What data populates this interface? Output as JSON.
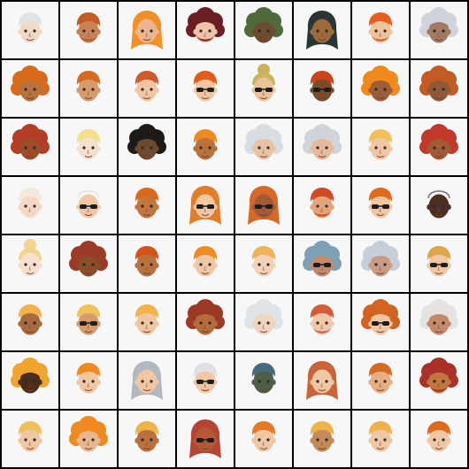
{
  "grid": {
    "rows": 8,
    "cols": 8,
    "cells": [
      {
        "skin": "#f1d9c6",
        "hair": "#dfe3e6",
        "style": "short",
        "glasses": false,
        "beard": false
      },
      {
        "skin": "#c88255",
        "hair": "#c45a24",
        "style": "short",
        "glasses": false,
        "beard": true
      },
      {
        "skin": "#e9b68f",
        "hair": "#f08a1e",
        "style": "long",
        "glasses": false,
        "beard": false
      },
      {
        "skin": "#f0c2a8",
        "hair": "#6b1f22",
        "style": "curly",
        "glasses": false,
        "beard": true
      },
      {
        "skin": "#6d4b2d",
        "hair": "#4f6b3b",
        "style": "curly",
        "glasses": false,
        "beard": false
      },
      {
        "skin": "#9b6b3a",
        "hair": "#1d2b2a",
        "style": "long",
        "glasses": false,
        "beard": false
      },
      {
        "skin": "#f0c39b",
        "hair": "#e65d1f",
        "style": "short",
        "glasses": false,
        "beard": true
      },
      {
        "skin": "#a47a63",
        "hair": "#cfd4dc",
        "style": "curly",
        "glasses": false,
        "beard": false
      },
      {
        "skin": "#b9723d",
        "hair": "#d86b1b",
        "style": "curly",
        "glasses": false,
        "beard": false
      },
      {
        "skin": "#d69a6b",
        "hair": "#d46b20",
        "style": "short",
        "glasses": false,
        "beard": false
      },
      {
        "skin": "#f0c7a2",
        "hair": "#d05b2c",
        "style": "short",
        "glasses": false,
        "beard": false
      },
      {
        "skin": "#f0c7a2",
        "hair": "#e35b18",
        "style": "short",
        "glasses": true,
        "beard": false
      },
      {
        "skin": "#e8c49a",
        "hair": "#cbb35e",
        "style": "bun",
        "glasses": true,
        "beard": false
      },
      {
        "skin": "#7b4a2b",
        "hair": "#c9461a",
        "style": "short",
        "glasses": true,
        "beard": false
      },
      {
        "skin": "#9c5d3a",
        "hair": "#f08a1e",
        "style": "curly",
        "glasses": false,
        "beard": false
      },
      {
        "skin": "#8f5a3a",
        "hair": "#c45a24",
        "style": "curly",
        "glasses": false,
        "beard": false
      },
      {
        "skin": "#9c4d2a",
        "hair": "#b53d25",
        "style": "curly",
        "glasses": false,
        "beard": false
      },
      {
        "skin": "#f6dfcf",
        "hair": "#f3df8d",
        "style": "short",
        "glasses": false,
        "beard": false
      },
      {
        "skin": "#6d4a2f",
        "hair": "#1e1a18",
        "style": "curly",
        "glasses": false,
        "beard": false
      },
      {
        "skin": "#b9723d",
        "hair": "#f08a1e",
        "style": "short",
        "glasses": false,
        "beard": false
      },
      {
        "skin": "#e7c3a3",
        "hair": "#d8dde2",
        "style": "curly",
        "glasses": false,
        "beard": false
      },
      {
        "skin": "#e7b99b",
        "hair": "#cfd4da",
        "style": "curly",
        "glasses": false,
        "beard": false
      },
      {
        "skin": "#f0c7a2",
        "hair": "#efc15a",
        "style": "short",
        "glasses": false,
        "beard": false
      },
      {
        "skin": "#a35b35",
        "hair": "#c1392b",
        "style": "curly",
        "glasses": false,
        "beard": false
      },
      {
        "skin": "#f6d7c4",
        "hair": "#f3e8dc",
        "style": "short",
        "glasses": false,
        "beard": true
      },
      {
        "skin": "#f0c7a2",
        "hair": "#d7d0c8",
        "style": "bald",
        "glasses": true,
        "beard": false
      },
      {
        "skin": "#c4763f",
        "hair": "#d86b1b",
        "style": "short",
        "glasses": false,
        "beard": false
      },
      {
        "skin": "#f0c7a2",
        "hair": "#e0761d",
        "style": "long",
        "glasses": true,
        "beard": false
      },
      {
        "skin": "#a35b35",
        "hair": "#d4611b",
        "style": "long",
        "glasses": true,
        "beard": false
      },
      {
        "skin": "#e3a47a",
        "hair": "#cf4a20",
        "style": "short",
        "glasses": false,
        "beard": true
      },
      {
        "skin": "#f0c7a2",
        "hair": "#e06a1a",
        "style": "short",
        "glasses": true,
        "beard": false
      },
      {
        "skin": "#4d2e22",
        "hair": "#2a1d18",
        "style": "bald",
        "glasses": false,
        "beard": false
      },
      {
        "skin": "#f6dfcf",
        "hair": "#f3d38b",
        "style": "bun",
        "glasses": false,
        "beard": false
      },
      {
        "skin": "#8a4f2a",
        "hair": "#9c3b25",
        "style": "curly",
        "glasses": false,
        "beard": false
      },
      {
        "skin": "#b9723d",
        "hair": "#d6521b",
        "style": "short",
        "glasses": false,
        "beard": false
      },
      {
        "skin": "#f0c7a2",
        "hair": "#f08a1e",
        "style": "short",
        "glasses": false,
        "beard": false
      },
      {
        "skin": "#f3d2b6",
        "hair": "#f0b15a",
        "style": "short",
        "glasses": false,
        "beard": false
      },
      {
        "skin": "#c48a6a",
        "hair": "#7ea0b6",
        "style": "curly",
        "glasses": true,
        "beard": false
      },
      {
        "skin": "#c89b84",
        "hair": "#c7ced8",
        "style": "curly",
        "glasses": false,
        "beard": false
      },
      {
        "skin": "#f0c7a2",
        "hair": "#e0a54b",
        "style": "short",
        "glasses": true,
        "beard": false
      },
      {
        "skin": "#a86a3d",
        "hair": "#f1b34d",
        "style": "short",
        "glasses": false,
        "beard": false
      },
      {
        "skin": "#d69a6b",
        "hair": "#f1c45a",
        "style": "short",
        "glasses": true,
        "beard": false
      },
      {
        "skin": "#f0c7a2",
        "hair": "#f0b24a",
        "style": "short",
        "glasses": false,
        "beard": false
      },
      {
        "skin": "#b66c3a",
        "hair": "#9c3b25",
        "style": "curly",
        "glasses": false,
        "beard": false
      },
      {
        "skin": "#f0d4bf",
        "hair": "#dfe3e6",
        "style": "curly",
        "glasses": false,
        "beard": false
      },
      {
        "skin": "#f1c8aa",
        "hair": "#d35d3a",
        "style": "short",
        "glasses": false,
        "beard": true
      },
      {
        "skin": "#f0c7a2",
        "hair": "#d26321",
        "style": "curly",
        "glasses": true,
        "beard": false
      },
      {
        "skin": "#c48a6a",
        "hair": "#e5e2e0",
        "style": "curly",
        "glasses": false,
        "beard": false
      },
      {
        "skin": "#4b2c1d",
        "hair": "#efa52e",
        "style": "curly",
        "glasses": false,
        "beard": false
      },
      {
        "skin": "#f0c7a2",
        "hair": "#f08a1e",
        "style": "short",
        "glasses": false,
        "beard": false
      },
      {
        "skin": "#f0c7a2",
        "hair": "#aeb4bc",
        "style": "long",
        "glasses": false,
        "beard": false
      },
      {
        "skin": "#f0c7a2",
        "hair": "#dde1e5",
        "style": "short",
        "glasses": true,
        "beard": false
      },
      {
        "skin": "#4f5f46",
        "hair": "#47697c",
        "style": "short",
        "glasses": false,
        "beard": false
      },
      {
        "skin": "#f0c7a2",
        "hair": "#c65b2e",
        "style": "long",
        "glasses": false,
        "beard": false
      },
      {
        "skin": "#e7ad83",
        "hair": "#d46b20",
        "style": "short",
        "glasses": false,
        "beard": false
      },
      {
        "skin": "#c4763f",
        "hair": "#a9312a",
        "style": "curly",
        "glasses": false,
        "beard": true
      },
      {
        "skin": "#f0c7a2",
        "hair": "#efc15a",
        "style": "short",
        "glasses": false,
        "beard": false
      },
      {
        "skin": "#e9b68f",
        "hair": "#f08a1e",
        "style": "curly",
        "glasses": false,
        "beard": false
      },
      {
        "skin": "#b9723d",
        "hair": "#f0b24a",
        "style": "short",
        "glasses": false,
        "beard": false
      },
      {
        "skin": "#b35a35",
        "hair": "#b23a2a",
        "style": "long",
        "glasses": true,
        "beard": false
      },
      {
        "skin": "#f0c7a2",
        "hair": "#e27a2a",
        "style": "short",
        "glasses": false,
        "beard": false
      },
      {
        "skin": "#c48a5a",
        "hair": "#f0b24a",
        "style": "short",
        "glasses": false,
        "beard": false
      },
      {
        "skin": "#f0c7a2",
        "hair": "#f0b24a",
        "style": "short",
        "glasses": false,
        "beard": false
      },
      {
        "skin": "#f0c7a2",
        "hair": "#e06a1a",
        "style": "short",
        "glasses": false,
        "beard": false
      }
    ]
  }
}
